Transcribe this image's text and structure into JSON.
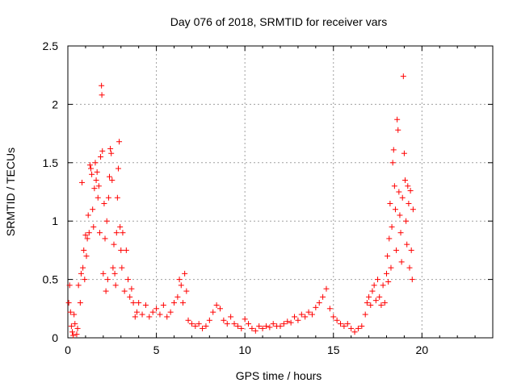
{
  "chart_data": {
    "type": "scatter",
    "title": "Day 076 of 2018, SRMTID for receiver vars",
    "xlabel": "GPS time / hours",
    "ylabel": "SRMTID / TECUs",
    "xlim": [
      0,
      24
    ],
    "ylim": [
      0,
      2.5
    ],
    "xticks": [
      0,
      5,
      10,
      15,
      20
    ],
    "xtick_labels": [
      "0",
      "5",
      "10",
      "15",
      "20"
    ],
    "yticks": [
      0,
      0.5,
      1,
      1.5,
      2,
      2.5
    ],
    "ytick_labels": [
      "0",
      "0.5",
      "1",
      "1.5",
      "2",
      "2.5"
    ],
    "grid": true,
    "marker": "+",
    "color": "#ff0000",
    "series": [
      {
        "name": "SRMTID",
        "points": [
          [
            0.05,
            0.3
          ],
          [
            0.1,
            0.45
          ],
          [
            0.15,
            0.22
          ],
          [
            0.2,
            0.1
          ],
          [
            0.25,
            0.05
          ],
          [
            0.3,
            0.02
          ],
          [
            0.35,
            0.2
          ],
          [
            0.4,
            0.12
          ],
          [
            0.5,
            0.03
          ],
          [
            0.55,
            0.08
          ],
          [
            0.6,
            0.45
          ],
          [
            0.7,
            0.3
          ],
          [
            0.75,
            0.55
          ],
          [
            0.8,
            1.33
          ],
          [
            0.85,
            0.6
          ],
          [
            0.9,
            0.75
          ],
          [
            0.95,
            0.5
          ],
          [
            1.0,
            0.88
          ],
          [
            1.05,
            0.7
          ],
          [
            1.1,
            0.85
          ],
          [
            1.15,
            1.05
          ],
          [
            1.2,
            0.9
          ],
          [
            1.25,
            1.48
          ],
          [
            1.3,
            1.45
          ],
          [
            1.35,
            1.4
          ],
          [
            1.4,
            1.1
          ],
          [
            1.45,
            0.95
          ],
          [
            1.5,
            1.28
          ],
          [
            1.55,
            1.5
          ],
          [
            1.6,
            1.35
          ],
          [
            1.65,
            1.42
          ],
          [
            1.7,
            1.2
          ],
          [
            1.75,
            1.3
          ],
          [
            1.8,
            0.9
          ],
          [
            1.85,
            1.55
          ],
          [
            1.9,
            2.16
          ],
          [
            1.92,
            2.08
          ],
          [
            1.95,
            1.6
          ],
          [
            2.0,
            0.55
          ],
          [
            2.05,
            1.15
          ],
          [
            2.1,
            0.85
          ],
          [
            2.15,
            0.4
          ],
          [
            2.2,
            1.0
          ],
          [
            2.25,
            0.5
          ],
          [
            2.3,
            1.2
          ],
          [
            2.35,
            1.38
          ],
          [
            2.4,
            1.62
          ],
          [
            2.45,
            1.58
          ],
          [
            2.5,
            1.35
          ],
          [
            2.55,
            0.6
          ],
          [
            2.6,
            0.8
          ],
          [
            2.65,
            0.55
          ],
          [
            2.7,
            0.45
          ],
          [
            2.75,
            0.9
          ],
          [
            2.8,
            1.2
          ],
          [
            2.85,
            1.45
          ],
          [
            2.9,
            1.68
          ],
          [
            2.95,
            0.95
          ],
          [
            3.0,
            0.75
          ],
          [
            3.05,
            0.6
          ],
          [
            3.1,
            0.9
          ],
          [
            3.2,
            0.4
          ],
          [
            3.3,
            0.75
          ],
          [
            3.4,
            0.5
          ],
          [
            3.5,
            0.35
          ],
          [
            3.6,
            0.42
          ],
          [
            3.7,
            0.3
          ],
          [
            3.8,
            0.18
          ],
          [
            3.9,
            0.22
          ],
          [
            4.0,
            0.3
          ],
          [
            4.2,
            0.2
          ],
          [
            4.4,
            0.28
          ],
          [
            4.6,
            0.18
          ],
          [
            4.8,
            0.22
          ],
          [
            5.0,
            0.25
          ],
          [
            5.2,
            0.2
          ],
          [
            5.4,
            0.28
          ],
          [
            5.6,
            0.18
          ],
          [
            5.8,
            0.22
          ],
          [
            6.0,
            0.3
          ],
          [
            6.2,
            0.35
          ],
          [
            6.3,
            0.5
          ],
          [
            6.4,
            0.45
          ],
          [
            6.5,
            0.3
          ],
          [
            6.6,
            0.55
          ],
          [
            6.7,
            0.4
          ],
          [
            6.8,
            0.15
          ],
          [
            7.0,
            0.12
          ],
          [
            7.2,
            0.1
          ],
          [
            7.4,
            0.12
          ],
          [
            7.6,
            0.08
          ],
          [
            7.8,
            0.1
          ],
          [
            8.0,
            0.15
          ],
          [
            8.2,
            0.22
          ],
          [
            8.4,
            0.28
          ],
          [
            8.6,
            0.25
          ],
          [
            8.8,
            0.15
          ],
          [
            9.0,
            0.12
          ],
          [
            9.2,
            0.18
          ],
          [
            9.4,
            0.12
          ],
          [
            9.6,
            0.1
          ],
          [
            9.8,
            0.08
          ],
          [
            10.0,
            0.16
          ],
          [
            10.2,
            0.12
          ],
          [
            10.4,
            0.08
          ],
          [
            10.6,
            0.06
          ],
          [
            10.8,
            0.1
          ],
          [
            11.0,
            0.08
          ],
          [
            11.2,
            0.1
          ],
          [
            11.4,
            0.09
          ],
          [
            11.6,
            0.12
          ],
          [
            11.8,
            0.1
          ],
          [
            12.0,
            0.1
          ],
          [
            12.2,
            0.12
          ],
          [
            12.4,
            0.14
          ],
          [
            12.6,
            0.13
          ],
          [
            12.8,
            0.18
          ],
          [
            13.0,
            0.15
          ],
          [
            13.2,
            0.2
          ],
          [
            13.4,
            0.18
          ],
          [
            13.6,
            0.22
          ],
          [
            13.8,
            0.2
          ],
          [
            14.0,
            0.26
          ],
          [
            14.2,
            0.3
          ],
          [
            14.4,
            0.35
          ],
          [
            14.6,
            0.42
          ],
          [
            14.8,
            0.25
          ],
          [
            15.0,
            0.18
          ],
          [
            15.2,
            0.15
          ],
          [
            15.4,
            0.12
          ],
          [
            15.6,
            0.1
          ],
          [
            15.8,
            0.12
          ],
          [
            16.0,
            0.08
          ],
          [
            16.2,
            0.05
          ],
          [
            16.4,
            0.08
          ],
          [
            16.6,
            0.1
          ],
          [
            16.8,
            0.2
          ],
          [
            16.9,
            0.3
          ],
          [
            17.0,
            0.35
          ],
          [
            17.1,
            0.28
          ],
          [
            17.2,
            0.4
          ],
          [
            17.3,
            0.45
          ],
          [
            17.4,
            0.32
          ],
          [
            17.5,
            0.5
          ],
          [
            17.6,
            0.35
          ],
          [
            17.7,
            0.28
          ],
          [
            17.8,
            0.45
          ],
          [
            17.9,
            0.3
          ],
          [
            18.0,
            0.55
          ],
          [
            18.05,
            0.7
          ],
          [
            18.1,
            0.48
          ],
          [
            18.15,
            0.85
          ],
          [
            18.2,
            1.15
          ],
          [
            18.25,
            0.6
          ],
          [
            18.3,
            0.95
          ],
          [
            18.35,
            1.5
          ],
          [
            18.4,
            1.61
          ],
          [
            18.45,
            1.3
          ],
          [
            18.5,
            1.1
          ],
          [
            18.55,
            0.75
          ],
          [
            18.6,
            1.87
          ],
          [
            18.65,
            1.78
          ],
          [
            18.7,
            1.25
          ],
          [
            18.75,
            1.05
          ],
          [
            18.8,
            0.9
          ],
          [
            18.85,
            0.65
          ],
          [
            18.9,
            1.2
          ],
          [
            18.95,
            2.24
          ],
          [
            19.0,
            1.58
          ],
          [
            19.05,
            1.35
          ],
          [
            19.1,
            1.0
          ],
          [
            19.15,
            0.8
          ],
          [
            19.2,
            1.3
          ],
          [
            19.25,
            1.15
          ],
          [
            19.3,
            0.6
          ],
          [
            19.35,
            1.26
          ],
          [
            19.4,
            0.75
          ],
          [
            19.45,
            0.5
          ],
          [
            19.5,
            1.1
          ]
        ]
      }
    ]
  }
}
